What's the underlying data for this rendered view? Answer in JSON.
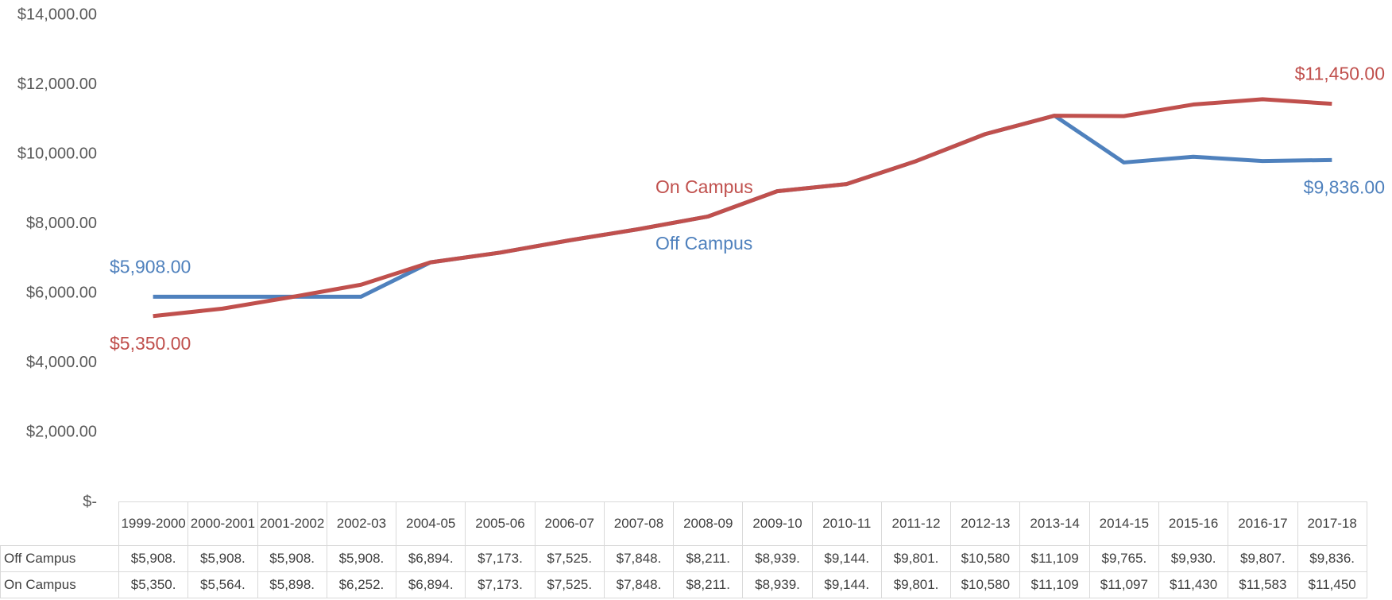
{
  "chart_data": {
    "type": "line",
    "categories": [
      "1999-2000",
      "2000-2001",
      "2001-2002",
      "2002-03",
      "2004-05",
      "2005-06",
      "2006-07",
      "2007-08",
      "2008-09",
      "2009-10",
      "2010-11",
      "2011-12",
      "2012-13",
      "2013-14",
      "2014-15",
      "2015-16",
      "2016-17",
      "2017-18"
    ],
    "series": [
      {
        "name": "Off Campus",
        "color": "#4f81bd",
        "values": [
          5908,
          5908,
          5908,
          5908,
          6894,
          7173,
          7525,
          7848,
          8211,
          8939,
          9144,
          9801,
          10580,
          11109,
          9765,
          9930,
          9807,
          9836
        ],
        "value_labels": [
          "$5,908.",
          "$5,908.",
          "$5,908.",
          "$5,908.",
          "$6,894.",
          "$7,173.",
          "$7,525.",
          "$7,848.",
          "$8,211.",
          "$8,939.",
          "$9,144.",
          "$9,801.",
          "$10,580",
          "$11,109",
          "$9,765.",
          "$9,930.",
          "$9,807.",
          "$9,836."
        ],
        "data_labels": [
          "$5,908.00",
          null,
          null,
          null,
          null,
          null,
          null,
          null,
          null,
          null,
          null,
          null,
          null,
          null,
          null,
          null,
          null,
          "$9,836.00"
        ]
      },
      {
        "name": "On Campus",
        "color": "#c0504d",
        "values": [
          5350,
          5564,
          5898,
          6252,
          6894,
          7173,
          7525,
          7848,
          8211,
          8939,
          9144,
          9801,
          10580,
          11109,
          11097,
          11430,
          11583,
          11450
        ],
        "value_labels": [
          "$5,350.",
          "$5,564.",
          "$5,898.",
          "$6,252.",
          "$6,894.",
          "$7,173.",
          "$7,525.",
          "$7,848.",
          "$8,211.",
          "$8,939.",
          "$9,144.",
          "$9,801.",
          "$10,580",
          "$11,109",
          "$11,097",
          "$11,430",
          "$11,583",
          "$11,450"
        ],
        "data_labels": [
          "$5,350.00",
          null,
          null,
          null,
          null,
          null,
          null,
          null,
          null,
          null,
          null,
          null,
          null,
          null,
          null,
          null,
          null,
          "$11,450.00"
        ]
      }
    ],
    "ylim": [
      0,
      14000
    ],
    "yticks": [
      {
        "value": 0,
        "label": "$-"
      },
      {
        "value": 2000,
        "label": "$2,000.00"
      },
      {
        "value": 4000,
        "label": "$4,000.00"
      },
      {
        "value": 6000,
        "label": "$6,000.00"
      },
      {
        "value": 8000,
        "label": "$8,000.00"
      },
      {
        "value": 10000,
        "label": "$10,000.00"
      },
      {
        "value": 12000,
        "label": "$12,000.00"
      },
      {
        "value": 14000,
        "label": "$14,000.00"
      }
    ],
    "grid": false
  }
}
